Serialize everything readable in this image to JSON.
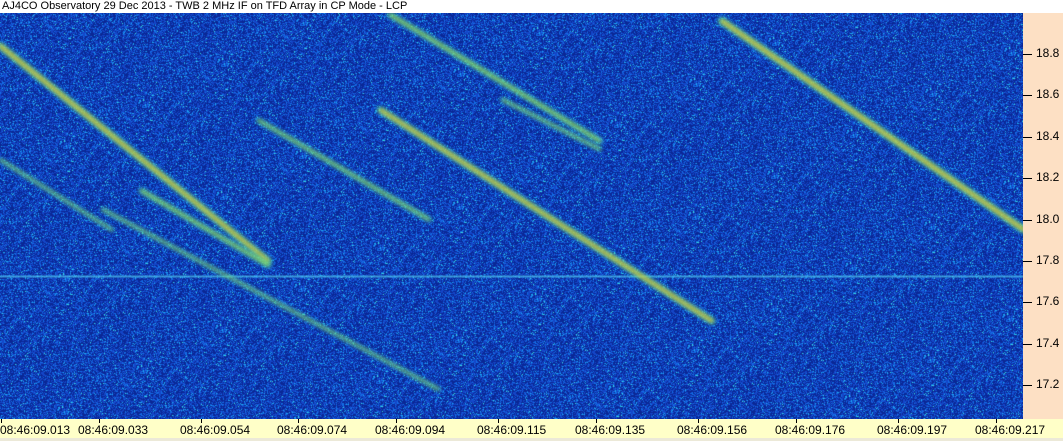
{
  "title": "AJ4CO Observatory 29 Dec 2013 - TWB 2 MHz IF on TFD Array in CP Mode - LCP",
  "chart_data": {
    "type": "heatmap",
    "title": "AJ4CO Observatory 29 Dec 2013 - TWB 2 MHz IF on TFD Array in CP Mode - LCP",
    "xlabel": "",
    "ylabel": "",
    "x_tick_labels": [
      "08:46:09.013",
      "08:46:09.033",
      "08:46:09.054",
      "08:46:09.074",
      "08:46:09.094",
      "08:46:09.115",
      "08:46:09.135",
      "08:46:09.156",
      "08:46:09.176",
      "08:46:09.197",
      "08:46:09.217"
    ],
    "y_tick_labels": [
      "18.8",
      "18.6",
      "18.4",
      "18.2",
      "18.0",
      "17.8",
      "17.6",
      "17.4",
      "17.2"
    ],
    "xlim": [
      "08:46:09.013",
      "08:46:09.223"
    ],
    "ylim": [
      17.13,
      18.95
    ],
    "colormap": [
      "#0a2a9a",
      "#1450d0",
      "#20a0f0",
      "#30e0d0",
      "#a0f040",
      "#f0f020",
      "#f08030",
      "#e040a0"
    ],
    "horizontal_interference_freq": 17.73,
    "trails": [
      {
        "start": [
          "08:46:09.013",
          18.84
        ],
        "end": [
          "08:46:09.068",
          17.8
        ],
        "intensity": 0.95
      },
      {
        "start": [
          "08:46:09.161",
          18.96
        ],
        "end": [
          "08:46:09.223",
          17.95
        ],
        "intensity": 1.0
      },
      {
        "start": [
          "08:46:09.093",
          18.99
        ],
        "end": [
          "08:46:09.136",
          18.38
        ],
        "intensity": 0.75
      },
      {
        "start": [
          "08:46:09.091",
          18.53
        ],
        "end": [
          "08:46:09.159",
          17.51
        ],
        "intensity": 0.9
      },
      {
        "start": [
          "08:46:09.066",
          18.48
        ],
        "end": [
          "08:46:09.101",
          18.0
        ],
        "intensity": 0.6
      },
      {
        "start": [
          "08:46:09.013",
          18.29
        ],
        "end": [
          "08:46:09.036",
          17.95
        ],
        "intensity": 0.45
      },
      {
        "start": [
          "08:46:09.042",
          18.14
        ],
        "end": [
          "08:46:09.068",
          17.78
        ],
        "intensity": 0.7
      },
      {
        "start": [
          "08:46:09.034",
          18.05
        ],
        "end": [
          "08:46:09.103",
          17.18
        ],
        "intensity": 0.45
      },
      {
        "start": [
          "08:46:09.116",
          18.58
        ],
        "end": [
          "08:46:09.136",
          18.34
        ],
        "intensity": 0.5
      }
    ]
  }
}
